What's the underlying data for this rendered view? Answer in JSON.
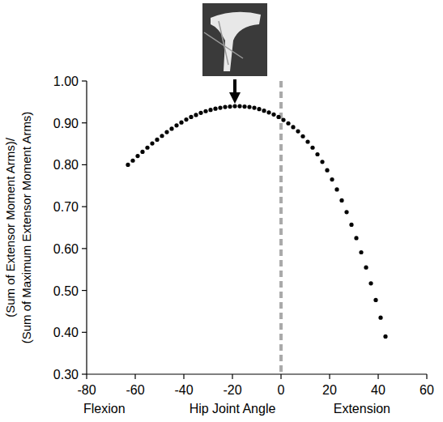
{
  "chart_data": {
    "type": "scatter",
    "x_label": "Hip Joint Angle",
    "y_label": [
      "(Sum of Extensor Moment Arms)/",
      "(Sum of Maximum Extensor Moment Arms)"
    ],
    "annotations": [
      "Flexion",
      "Extension"
    ],
    "vline": 0,
    "color": "#000000",
    "marker": "circle",
    "grid": false,
    "x": [
      -63,
      -61,
      -59,
      -57,
      -55,
      -53,
      -51,
      -49,
      -47,
      -45,
      -43,
      -41,
      -39,
      -37,
      -35,
      -33,
      -31,
      -29,
      -27,
      -25,
      -23,
      -21,
      -19,
      -17,
      -15,
      -13,
      -11,
      -9,
      -7,
      -5,
      -3,
      -1,
      1,
      3,
      5,
      7,
      9,
      11,
      13,
      15,
      17,
      19,
      21,
      23,
      25,
      27,
      29,
      31,
      33,
      35,
      37,
      39,
      41,
      43
    ],
    "values": [
      0.8,
      0.81,
      0.821,
      0.831,
      0.841,
      0.851,
      0.86,
      0.869,
      0.878,
      0.886,
      0.894,
      0.901,
      0.908,
      0.914,
      0.919,
      0.924,
      0.928,
      0.931,
      0.934,
      0.936,
      0.938,
      0.939,
      0.94,
      0.94,
      0.939,
      0.938,
      0.936,
      0.933,
      0.929,
      0.925,
      0.92,
      0.914,
      0.907,
      0.899,
      0.89,
      0.88,
      0.868,
      0.855,
      0.841,
      0.825,
      0.807,
      0.787,
      0.765,
      0.741,
      0.715,
      0.687,
      0.657,
      0.625,
      0.591,
      0.555,
      0.517,
      0.477,
      0.435,
      0.39
    ],
    "xlim": [
      -80,
      60
    ],
    "xticks": [
      -80,
      -60,
      -40,
      -20,
      0,
      20,
      40,
      60
    ],
    "ylim": [
      0.3,
      1.0
    ],
    "yticks": [
      {
        "value": 0.3,
        "label": "0.30"
      },
      {
        "value": 0.4,
        "label": "0.40"
      },
      {
        "value": 0.5,
        "label": "0.50"
      },
      {
        "value": 0.6,
        "label": "0.60"
      },
      {
        "value": 0.7,
        "label": "0.70"
      },
      {
        "value": 0.8,
        "label": "0.80"
      },
      {
        "value": 0.9,
        "label": "0.90"
      },
      {
        "value": 1.0,
        "label": "1.00"
      }
    ]
  }
}
